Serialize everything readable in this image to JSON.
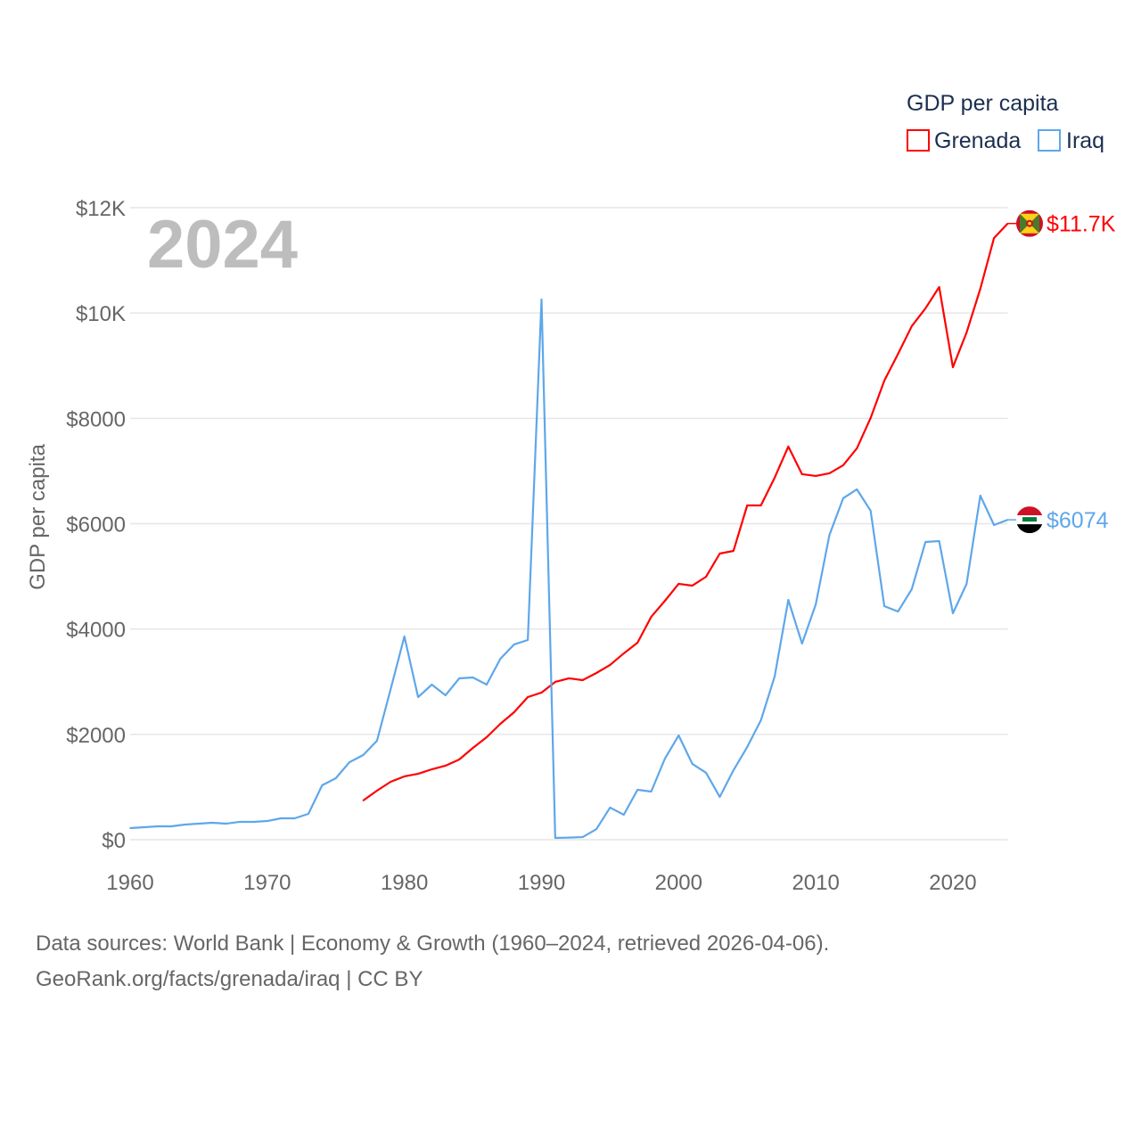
{
  "chart_data": {
    "type": "line",
    "title": "GDP per capita",
    "ylabel": "GDP per capita",
    "xlabel": "",
    "year_label": "2024",
    "xlim": [
      1960,
      2024
    ],
    "ylim": [
      0,
      12000
    ],
    "grid": true,
    "legend_placement": "top-right",
    "x_ticks": [
      1960,
      1970,
      1980,
      1990,
      2000,
      2010,
      2020
    ],
    "y_ticks": [
      {
        "value": 0,
        "label": "$0"
      },
      {
        "value": 2000,
        "label": "$2000"
      },
      {
        "value": 4000,
        "label": "$4000"
      },
      {
        "value": 6000,
        "label": "$6000"
      },
      {
        "value": 8000,
        "label": "$8000"
      },
      {
        "value": 10000,
        "label": "$10K"
      },
      {
        "value": 12000,
        "label": "$12K"
      }
    ],
    "series": [
      {
        "name": "Grenada",
        "color": "#ff0000",
        "end_label": "$11.7K",
        "flag": "grenada-flag",
        "x_start": 1977,
        "values": [
          745,
          931,
          1100,
          1202,
          1252,
          1337,
          1405,
          1523,
          1743,
          1946,
          2200,
          2420,
          2708,
          2793,
          2996,
          3064,
          3030,
          3165,
          3318,
          3538,
          3741,
          4232,
          4536,
          4858,
          4824,
          4993,
          5433,
          5484,
          6347,
          6347,
          6872,
          7465,
          6940,
          6906,
          6957,
          7109,
          7431,
          8006,
          8717,
          9225,
          9750,
          10088,
          10494,
          8971,
          9631,
          10460,
          11425,
          11700
        ]
      },
      {
        "name": "Iraq",
        "color": "#5ea7ea",
        "end_label": "$6074",
        "flag": "iraq-flag",
        "x_start": 1960,
        "values": [
          220,
          237,
          254,
          254,
          288,
          305,
          322,
          305,
          339,
          339,
          355,
          406,
          406,
          491,
          1032,
          1168,
          1473,
          1608,
          1879,
          2860,
          3859,
          2708,
          2945,
          2742,
          3064,
          3080,
          2945,
          3436,
          3707,
          3791,
          10257,
          34,
          40,
          50,
          200,
          610,
          474,
          948,
          914,
          1540,
          1980,
          1439,
          1270,
          812,
          1320,
          1760,
          2268,
          3097,
          4553,
          3724,
          4468,
          5789,
          6483,
          6652,
          6246,
          4435,
          4333,
          4756,
          5653,
          5670,
          4299,
          4858,
          6533,
          5975,
          6074
        ]
      }
    ]
  },
  "footer": {
    "line1": "Data sources: World Bank | Economy & Growth (1960–2024, retrieved 2026-04-06).",
    "line2": "GeoRank.org/facts/grenada/iraq | CC BY"
  }
}
